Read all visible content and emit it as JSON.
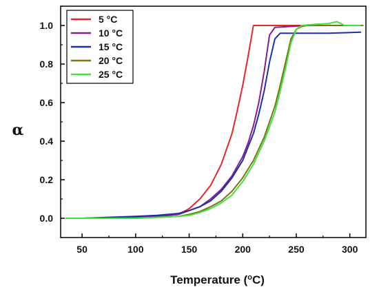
{
  "chart_data": {
    "type": "line",
    "title": "",
    "xlabel": "Temperature (",
    "xlabel_unit": "°C)",
    "ylabel": "α",
    "xlim": [
      30,
      315
    ],
    "ylim": [
      -0.1,
      1.1
    ],
    "xticks": [
      50,
      100,
      150,
      200,
      250,
      300
    ],
    "xtick_labels": [
      "50",
      "100",
      "150",
      "200",
      "250",
      "300"
    ],
    "yticks": [
      0.0,
      0.2,
      0.4,
      0.6,
      0.8,
      1.0
    ],
    "ytick_labels": [
      "0.0",
      "0.2",
      "0.4",
      "0.6",
      "0.8",
      "1.0"
    ],
    "grid": false,
    "legend_position": "top-left",
    "series": [
      {
        "name": "5 °C",
        "color": "#e8232a",
        "x": [
          35,
          50,
          75,
          100,
          120,
          140,
          150,
          160,
          170,
          180,
          190,
          195,
          200,
          205,
          210,
          215,
          230,
          260,
          290,
          312
        ],
        "y": [
          0.0,
          0.0,
          0.0,
          0.005,
          0.01,
          0.02,
          0.05,
          0.1,
          0.17,
          0.28,
          0.44,
          0.56,
          0.69,
          0.84,
          1.0,
          1.0,
          1.0,
          1.0,
          1.0,
          1.0
        ]
      },
      {
        "name": "10 °C",
        "color": "#8b1a8b",
        "x": [
          35,
          50,
          75,
          100,
          120,
          140,
          150,
          160,
          170,
          180,
          190,
          200,
          205,
          210,
          215,
          220,
          225,
          230,
          260,
          290,
          312
        ],
        "y": [
          0.0,
          0.0,
          0.0,
          0.005,
          0.01,
          0.02,
          0.04,
          0.06,
          0.1,
          0.15,
          0.22,
          0.32,
          0.39,
          0.48,
          0.6,
          0.76,
          0.95,
          0.99,
          1.0,
          1.0,
          1.0
        ]
      },
      {
        "name": "15 °C",
        "color": "#1c2db3",
        "x": [
          35,
          50,
          75,
          100,
          120,
          140,
          150,
          160,
          170,
          180,
          190,
          200,
          210,
          215,
          220,
          225,
          230,
          235,
          250,
          280,
          310
        ],
        "y": [
          0.0,
          0.0,
          0.005,
          0.01,
          0.015,
          0.025,
          0.04,
          0.06,
          0.09,
          0.14,
          0.21,
          0.3,
          0.44,
          0.54,
          0.66,
          0.81,
          0.93,
          0.96,
          0.96,
          0.96,
          0.965
        ]
      },
      {
        "name": "20 °C",
        "color": "#7a7410",
        "x": [
          35,
          50,
          75,
          100,
          120,
          140,
          150,
          160,
          170,
          180,
          190,
          200,
          210,
          220,
          230,
          235,
          240,
          245,
          250,
          255,
          260,
          280,
          300,
          312
        ],
        "y": [
          0.0,
          0.0,
          0.0,
          0.0,
          0.005,
          0.01,
          0.02,
          0.035,
          0.06,
          0.09,
          0.14,
          0.21,
          0.3,
          0.42,
          0.58,
          0.69,
          0.81,
          0.93,
          0.98,
          0.995,
          1.0,
          1.0,
          1.0,
          1.0
        ]
      },
      {
        "name": "25 °C",
        "color": "#3de33d",
        "x": [
          35,
          50,
          75,
          100,
          120,
          140,
          150,
          160,
          170,
          180,
          190,
          200,
          210,
          220,
          230,
          235,
          240,
          245,
          250,
          255,
          265,
          280,
          288,
          295,
          305,
          310
        ],
        "y": [
          0.0,
          0.0,
          0.0,
          0.0,
          0.005,
          0.01,
          0.015,
          0.03,
          0.05,
          0.08,
          0.12,
          0.19,
          0.28,
          0.4,
          0.55,
          0.66,
          0.78,
          0.91,
          0.98,
          1.0,
          1.005,
          1.01,
          1.02,
          1.0,
          1.0,
          1.0
        ]
      }
    ]
  }
}
